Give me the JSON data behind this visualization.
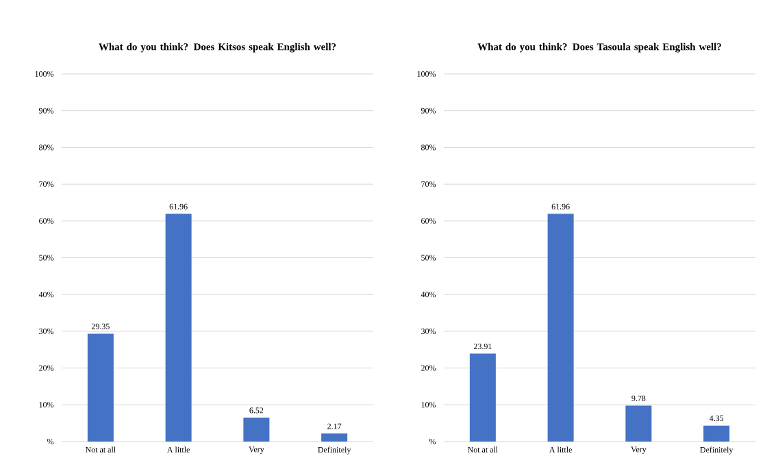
{
  "chart_data": [
    {
      "type": "bar",
      "title": "What do you think? Does Kitsos speak English well?",
      "categories": [
        "Not at all",
        "A little",
        "Very",
        "Definitely"
      ],
      "values": [
        29.35,
        61.96,
        6.52,
        2.17
      ],
      "color": "#4472c4",
      "ylim": [
        0,
        100
      ],
      "yticks": [
        {
          "value": 0,
          "label": "%"
        },
        {
          "value": 10,
          "label": "10%"
        },
        {
          "value": 20,
          "label": "20%"
        },
        {
          "value": 30,
          "label": "30%"
        },
        {
          "value": 40,
          "label": "40%"
        },
        {
          "value": 50,
          "label": "50%"
        },
        {
          "value": 60,
          "label": "60%"
        },
        {
          "value": 70,
          "label": "70%"
        },
        {
          "value": 80,
          "label": "80%"
        },
        {
          "value": 90,
          "label": "90%"
        },
        {
          "value": 100,
          "label": "100%"
        }
      ],
      "grid": "y",
      "data_labels": true
    },
    {
      "type": "bar",
      "title": "What do you think? Does Tasoula speak English well?",
      "categories": [
        "Not at all",
        "A little",
        "Very",
        "Definitely"
      ],
      "values": [
        23.91,
        61.96,
        9.78,
        4.35
      ],
      "color": "#4472c4",
      "ylim": [
        0,
        100
      ],
      "yticks": [
        {
          "value": 0,
          "label": "%"
        },
        {
          "value": 10,
          "label": "10%"
        },
        {
          "value": 20,
          "label": "20%"
        },
        {
          "value": 30,
          "label": "30%"
        },
        {
          "value": 40,
          "label": "40%"
        },
        {
          "value": 50,
          "label": "50%"
        },
        {
          "value": 60,
          "label": "60%"
        },
        {
          "value": 70,
          "label": "70%"
        },
        {
          "value": 80,
          "label": "80%"
        },
        {
          "value": 90,
          "label": "90%"
        },
        {
          "value": 100,
          "label": "100%"
        }
      ],
      "grid": "y",
      "data_labels": true
    }
  ]
}
